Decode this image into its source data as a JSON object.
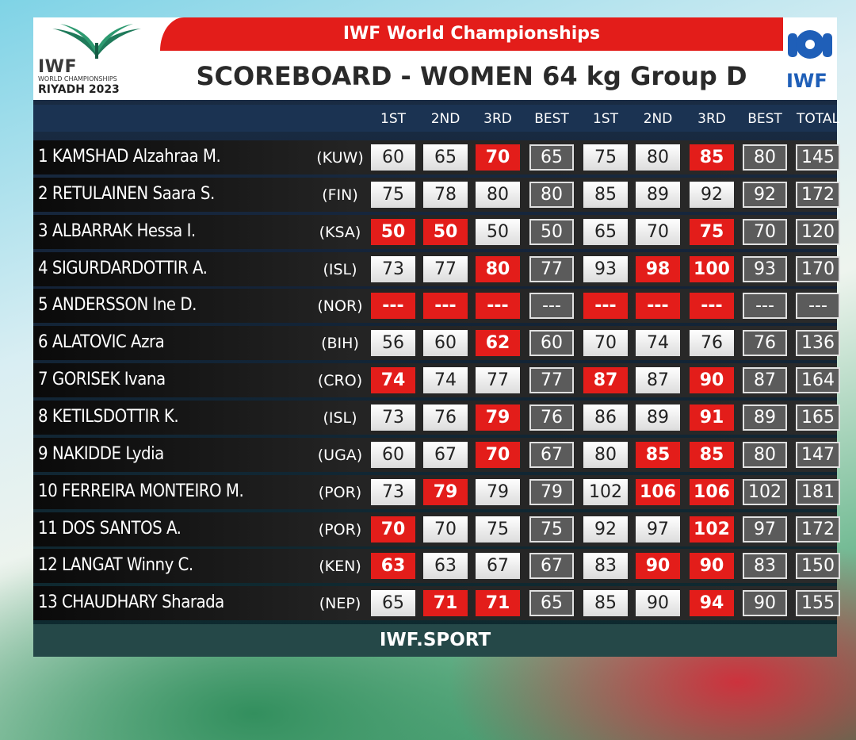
{
  "header": {
    "event": "IWF World Championships",
    "title": "SCOREBOARD - WOMEN 64 kg Group D",
    "logo_left": {
      "line1": "IWF",
      "line2": "WORLD CHAMPIONSHIPS",
      "line3": "RIYADH 2023"
    },
    "logo_right": "IWF"
  },
  "columns": [
    "1ST",
    "2ND",
    "3RD",
    "BEST",
    "1ST",
    "2ND",
    "3RD",
    "BEST",
    "TOTAL"
  ],
  "footer": "IWF.SPORT",
  "colors": {
    "fail": "#e31d1a",
    "success": "#ffffff",
    "best": "#5b5b5b"
  },
  "rows": [
    {
      "rank": "1",
      "name": "KAMSHAD Alzahraa M.",
      "nat": "(KUW)",
      "vals": [
        "60",
        "65",
        "70",
        "65",
        "75",
        "80",
        "85",
        "80",
        "145"
      ],
      "fail": [
        2,
        6
      ]
    },
    {
      "rank": "2",
      "name": "RETULAINEN Saara S.",
      "nat": "(FIN)",
      "vals": [
        "75",
        "78",
        "80",
        "80",
        "85",
        "89",
        "92",
        "92",
        "172"
      ],
      "fail": []
    },
    {
      "rank": "3",
      "name": "ALBARRAK Hessa I.",
      "nat": "(KSA)",
      "vals": [
        "50",
        "50",
        "50",
        "50",
        "65",
        "70",
        "75",
        "70",
        "120"
      ],
      "fail": [
        0,
        1,
        6
      ]
    },
    {
      "rank": "4",
      "name": "SIGURDARDOTTIR A.",
      "nat": "(ISL)",
      "vals": [
        "73",
        "77",
        "80",
        "77",
        "93",
        "98",
        "100",
        "93",
        "170"
      ],
      "fail": [
        2,
        5,
        6
      ]
    },
    {
      "rank": "5",
      "name": "ANDERSSON Ine D.",
      "nat": "(NOR)",
      "vals": [
        "---",
        "---",
        "---",
        "---",
        "---",
        "---",
        "---",
        "---",
        "---"
      ],
      "fail": [
        0,
        1,
        2,
        4,
        5,
        6
      ]
    },
    {
      "rank": "6",
      "name": "ALATOVIC Azra",
      "nat": "(BIH)",
      "vals": [
        "56",
        "60",
        "62",
        "60",
        "70",
        "74",
        "76",
        "76",
        "136"
      ],
      "fail": [
        2
      ]
    },
    {
      "rank": "7",
      "name": "GORISEK Ivana",
      "nat": "(CRO)",
      "vals": [
        "74",
        "74",
        "77",
        "77",
        "87",
        "87",
        "90",
        "87",
        "164"
      ],
      "fail": [
        0,
        4,
        6
      ]
    },
    {
      "rank": "8",
      "name": "KETILSDOTTIR K.",
      "nat": "(ISL)",
      "vals": [
        "73",
        "76",
        "79",
        "76",
        "86",
        "89",
        "91",
        "89",
        "165"
      ],
      "fail": [
        2,
        6
      ]
    },
    {
      "rank": "9",
      "name": "NAKIDDE Lydia",
      "nat": "(UGA)",
      "vals": [
        "60",
        "67",
        "70",
        "67",
        "80",
        "85",
        "85",
        "80",
        "147"
      ],
      "fail": [
        2,
        5,
        6
      ]
    },
    {
      "rank": "10",
      "name": "FERREIRA MONTEIRO M.",
      "nat": "(POR)",
      "vals": [
        "73",
        "79",
        "79",
        "79",
        "102",
        "106",
        "106",
        "102",
        "181"
      ],
      "fail": [
        1,
        5,
        6
      ]
    },
    {
      "rank": "11",
      "name": "DOS SANTOS A.",
      "nat": "(POR)",
      "vals": [
        "70",
        "70",
        "75",
        "75",
        "92",
        "97",
        "102",
        "97",
        "172"
      ],
      "fail": [
        0,
        6
      ]
    },
    {
      "rank": "12",
      "name": "LANGAT Winny C.",
      "nat": "(KEN)",
      "vals": [
        "63",
        "63",
        "67",
        "67",
        "83",
        "90",
        "90",
        "83",
        "150"
      ],
      "fail": [
        0,
        5,
        6
      ]
    },
    {
      "rank": "13",
      "name": "CHAUDHARY Sharada",
      "nat": "(NEP)",
      "vals": [
        "65",
        "71",
        "71",
        "65",
        "85",
        "90",
        "94",
        "90",
        "155"
      ],
      "fail": [
        1,
        2,
        6
      ]
    }
  ]
}
